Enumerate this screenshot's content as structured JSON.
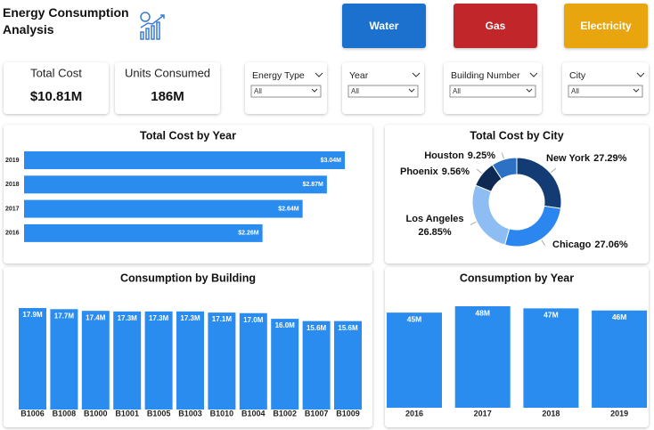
{
  "header": {
    "title": "Energy Consumption Analysis"
  },
  "buttons": [
    "Water",
    "Gas",
    "Electricity"
  ],
  "kpis": [
    {
      "label": "Total Cost",
      "value": "$10.81M"
    },
    {
      "label": "Units Consumed",
      "value": "186M"
    }
  ],
  "filters": [
    {
      "label": "Energy Type",
      "value": "All"
    },
    {
      "label": "Year",
      "value": "All"
    },
    {
      "label": "Building Number",
      "value": "All"
    },
    {
      "label": "City",
      "value": "All"
    }
  ],
  "chart_data": [
    {
      "type": "bar",
      "orientation": "horizontal",
      "title": "Total Cost by Year",
      "categories": [
        "2019",
        "2018",
        "2017",
        "2016"
      ],
      "values": [
        3.04,
        2.87,
        2.64,
        2.26
      ],
      "value_labels": [
        "$3.04M",
        "$2.87M",
        "$2.64M",
        "$2.26M"
      ],
      "color": "#2b8cf0"
    },
    {
      "type": "pie",
      "donut": true,
      "title": "Total Cost by City",
      "categories": [
        "New York",
        "Chicago",
        "Los Angeles",
        "Phoenix",
        "Houston"
      ],
      "values": [
        27.29,
        27.06,
        26.85,
        9.56,
        9.25
      ],
      "value_labels": [
        "27.29%",
        "27.06%",
        "26.85%",
        "9.56%",
        "9.25%"
      ],
      "colors": [
        "#123c73",
        "#2b86f0",
        "#8dbdf2",
        "#0e2a52",
        "#2c71c4"
      ]
    },
    {
      "type": "bar",
      "orientation": "vertical",
      "title": "Consumption by Building",
      "categories": [
        "B1006",
        "B1008",
        "B1000",
        "B1001",
        "B1005",
        "B1003",
        "B1010",
        "B1004",
        "B1002",
        "B1007",
        "B1009"
      ],
      "values": [
        17.9,
        17.7,
        17.4,
        17.3,
        17.3,
        17.3,
        17.1,
        17.0,
        16.0,
        15.6,
        15.6
      ],
      "value_labels": [
        "17.9M",
        "17.7M",
        "17.4M",
        "17.3M",
        "17.3M",
        "17.3M",
        "17.1M",
        "17.0M",
        "16.0M",
        "15.6M",
        "15.6M"
      ],
      "color": "#2b8cf0"
    },
    {
      "type": "bar",
      "orientation": "vertical",
      "title": "Consumption by Year",
      "categories": [
        "2016",
        "2017",
        "2018",
        "2019"
      ],
      "values": [
        45,
        48,
        47,
        46
      ],
      "value_labels": [
        "45M",
        "48M",
        "47M",
        "46M"
      ],
      "color": "#2b8cf0"
    }
  ]
}
